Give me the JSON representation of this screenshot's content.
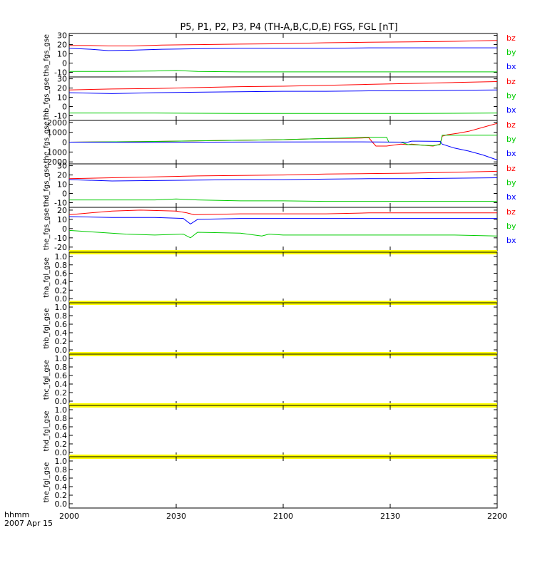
{
  "title": "P5, P1, P2, P3, P4 (TH-A,B,C,D,E) FGS, FGL [nT]",
  "time_axis": {
    "ticks": [
      "2000",
      "2030",
      "2100",
      "2130",
      "2200"
    ],
    "label_line1": "hhmm",
    "label_line2": "2007 Apr 15"
  },
  "colors": {
    "bx": "#0000ff",
    "by": "#00cc00",
    "bz": "#ff0000",
    "fgl_bar": "#ffff00",
    "axis": "#000000"
  },
  "chart_data": [
    {
      "type": "line",
      "ylabel": "tha_fgs_gse",
      "ylim": [
        -15,
        32
      ],
      "yticks": [
        "30",
        "20",
        "10",
        "0",
        "-10"
      ],
      "legend": [
        "bz",
        "by",
        "bx"
      ],
      "series": [
        {
          "name": "bz",
          "x": [
            0,
            30,
            55,
            90,
            130,
            180,
            240,
            300,
            360,
            420,
            480,
            540,
            600
          ],
          "values": [
            19,
            19,
            18.5,
            18.5,
            19.5,
            20,
            20.5,
            21,
            22,
            22.5,
            23,
            23.5,
            24.5
          ]
        },
        {
          "name": "bx",
          "x": [
            0,
            30,
            55,
            90,
            130,
            180,
            240,
            300,
            360,
            420,
            480,
            540,
            600
          ],
          "values": [
            16,
            15,
            13.5,
            14,
            15,
            15.5,
            16,
            16,
            16,
            16.5,
            16.5,
            16.5,
            16.5
          ]
        },
        {
          "name": "by",
          "x": [
            0,
            60,
            120,
            150,
            180,
            240,
            300,
            360,
            420,
            480,
            540,
            600
          ],
          "values": [
            -9,
            -9,
            -8.5,
            -8,
            -9,
            -9.5,
            -9.5,
            -9.5,
            -9.5,
            -9.5,
            -9.5,
            -9.5
          ]
        }
      ]
    },
    {
      "type": "line",
      "ylabel": "thb_fgs_gse",
      "ylim": [
        -15,
        32
      ],
      "yticks": [
        "30",
        "20",
        "10",
        "0",
        "-10"
      ],
      "legend": [
        "bz",
        "by",
        "bx"
      ],
      "series": [
        {
          "name": "bz",
          "x": [
            0,
            60,
            120,
            180,
            240,
            300,
            360,
            420,
            480,
            540,
            600
          ],
          "values": [
            18,
            19,
            19.5,
            20.5,
            21.5,
            22,
            23,
            24,
            25,
            26,
            27
          ]
        },
        {
          "name": "bx",
          "x": [
            0,
            60,
            120,
            180,
            240,
            300,
            360,
            420,
            480,
            540,
            600
          ],
          "values": [
            15,
            14,
            15,
            15.5,
            16,
            16.5,
            16.5,
            17,
            17,
            17.5,
            18
          ]
        },
        {
          "name": "by",
          "x": [
            0,
            120,
            240,
            360,
            480,
            600
          ],
          "values": [
            -7,
            -7,
            -7.5,
            -7.5,
            -7.5,
            -7
          ]
        }
      ]
    },
    {
      "type": "line",
      "ylabel": "thc_fgs_gse",
      "ylim": [
        -2200,
        2200
      ],
      "yticks": [
        "2000",
        "1000",
        "0",
        "-1000",
        "-2000"
      ],
      "legend": [
        "bz",
        "by",
        "bx"
      ],
      "series": [
        {
          "name": "bz",
          "x": [
            0,
            100,
            200,
            300,
            350,
            400,
            420,
            425,
            430,
            445,
            465,
            475,
            480,
            495,
            510,
            520,
            523,
            530,
            545,
            560,
            575,
            590,
            600
          ],
          "values": [
            0,
            50,
            150,
            250,
            350,
            400,
            450,
            0,
            -400,
            -400,
            -200,
            -250,
            -200,
            -300,
            -400,
            -200,
            600,
            750,
            900,
            1100,
            1400,
            1700,
            1900
          ]
        },
        {
          "name": "by",
          "x": [
            0,
            100,
            200,
            300,
            350,
            400,
            420,
            445,
            448,
            465,
            475,
            480,
            495,
            510,
            520,
            523,
            545,
            600
          ],
          "values": [
            0,
            50,
            150,
            250,
            350,
            450,
            500,
            500,
            0,
            0,
            -250,
            -250,
            -300,
            -350,
            -250,
            700,
            700,
            700
          ]
        },
        {
          "name": "bx",
          "x": [
            0,
            100,
            200,
            300,
            400,
            450,
            475,
            480,
            490,
            520,
            523,
            540,
            560,
            580,
            600
          ],
          "values": [
            0,
            -20,
            0,
            20,
            30,
            10,
            0,
            100,
            100,
            80,
            -200,
            -600,
            -900,
            -1300,
            -1800
          ]
        }
      ]
    },
    {
      "type": "line",
      "ylabel": "thd_fgs_gse",
      "ylim": [
        -15,
        32
      ],
      "yticks": [
        "30",
        "20",
        "10",
        "0",
        "-10"
      ],
      "legend": [
        "bz",
        "by",
        "bx"
      ],
      "series": [
        {
          "name": "bz",
          "x": [
            0,
            60,
            120,
            180,
            240,
            300,
            360,
            420,
            480,
            540,
            600
          ],
          "values": [
            16,
            17,
            18,
            19,
            19.5,
            20,
            21,
            21.5,
            22,
            23,
            24
          ]
        },
        {
          "name": "bx",
          "x": [
            0,
            60,
            120,
            180,
            240,
            300,
            360,
            420,
            480,
            540,
            600
          ],
          "values": [
            15,
            13.5,
            14,
            14.5,
            15,
            15,
            15.5,
            16,
            16,
            16.5,
            17
          ]
        },
        {
          "name": "by",
          "x": [
            0,
            120,
            150,
            180,
            240,
            300,
            360,
            420,
            480,
            540,
            600
          ],
          "values": [
            -7,
            -7,
            -6,
            -7,
            -8,
            -8,
            -8.5,
            -8.5,
            -8.5,
            -8.5,
            -8.5
          ]
        }
      ]
    },
    {
      "type": "line",
      "ylabel": "the_fgs_gse",
      "ylim": [
        -24,
        23
      ],
      "yticks": [
        "20",
        "10",
        "0",
        "-10",
        "-20"
      ],
      "legend": [
        "bz",
        "by",
        "bx"
      ],
      "series": [
        {
          "name": "bz",
          "x": [
            0,
            30,
            60,
            100,
            150,
            165,
            175,
            240,
            300,
            360,
            420,
            480,
            540,
            600
          ],
          "values": [
            15,
            17,
            19,
            20,
            19,
            17,
            15,
            16,
            16,
            16,
            17,
            17,
            17,
            17
          ]
        },
        {
          "name": "bx",
          "x": [
            0,
            60,
            120,
            160,
            170,
            180,
            240,
            300,
            360,
            420,
            480,
            540,
            600
          ],
          "values": [
            13,
            12,
            12,
            11,
            5,
            10,
            11,
            11,
            11,
            11,
            11,
            11,
            11
          ]
        },
        {
          "name": "by",
          "x": [
            0,
            40,
            80,
            120,
            160,
            170,
            180,
            240,
            270,
            280,
            300,
            360,
            420,
            480,
            540,
            600
          ],
          "values": [
            -2,
            -4,
            -6,
            -7,
            -6,
            -10,
            -4,
            -5,
            -8,
            -6,
            -7,
            -7,
            -7,
            -7,
            -7,
            -8
          ]
        }
      ]
    },
    {
      "type": "line",
      "ylabel": "tha_fgl_gse",
      "ylim": [
        -0.1,
        1.1
      ],
      "yticks": [
        "1.0",
        "0.8",
        "0.6",
        "0.4",
        "0.2",
        "0.0"
      ]
    },
    {
      "type": "line",
      "ylabel": "thb_fgl_gse",
      "ylim": [
        -0.1,
        1.1
      ],
      "yticks": [
        "1.0",
        "0.8",
        "0.6",
        "0.4",
        "0.2",
        "0.0"
      ]
    },
    {
      "type": "line",
      "ylabel": "thc_fgl_gse",
      "ylim": [
        -0.1,
        1.1
      ],
      "yticks": [
        "1.0",
        "0.8",
        "0.6",
        "0.4",
        "0.2",
        "0.0"
      ]
    },
    {
      "type": "line",
      "ylabel": "thd_fgl_gse",
      "ylim": [
        -0.1,
        1.1
      ],
      "yticks": [
        "1.0",
        "0.8",
        "0.6",
        "0.4",
        "0.2",
        "0.0"
      ]
    },
    {
      "type": "line",
      "ylabel": "the_fgl_gse",
      "ylim": [
        -0.1,
        1.1
      ],
      "yticks": [
        "1.0",
        "0.8",
        "0.6",
        "0.4",
        "0.2",
        "0.0"
      ]
    }
  ]
}
